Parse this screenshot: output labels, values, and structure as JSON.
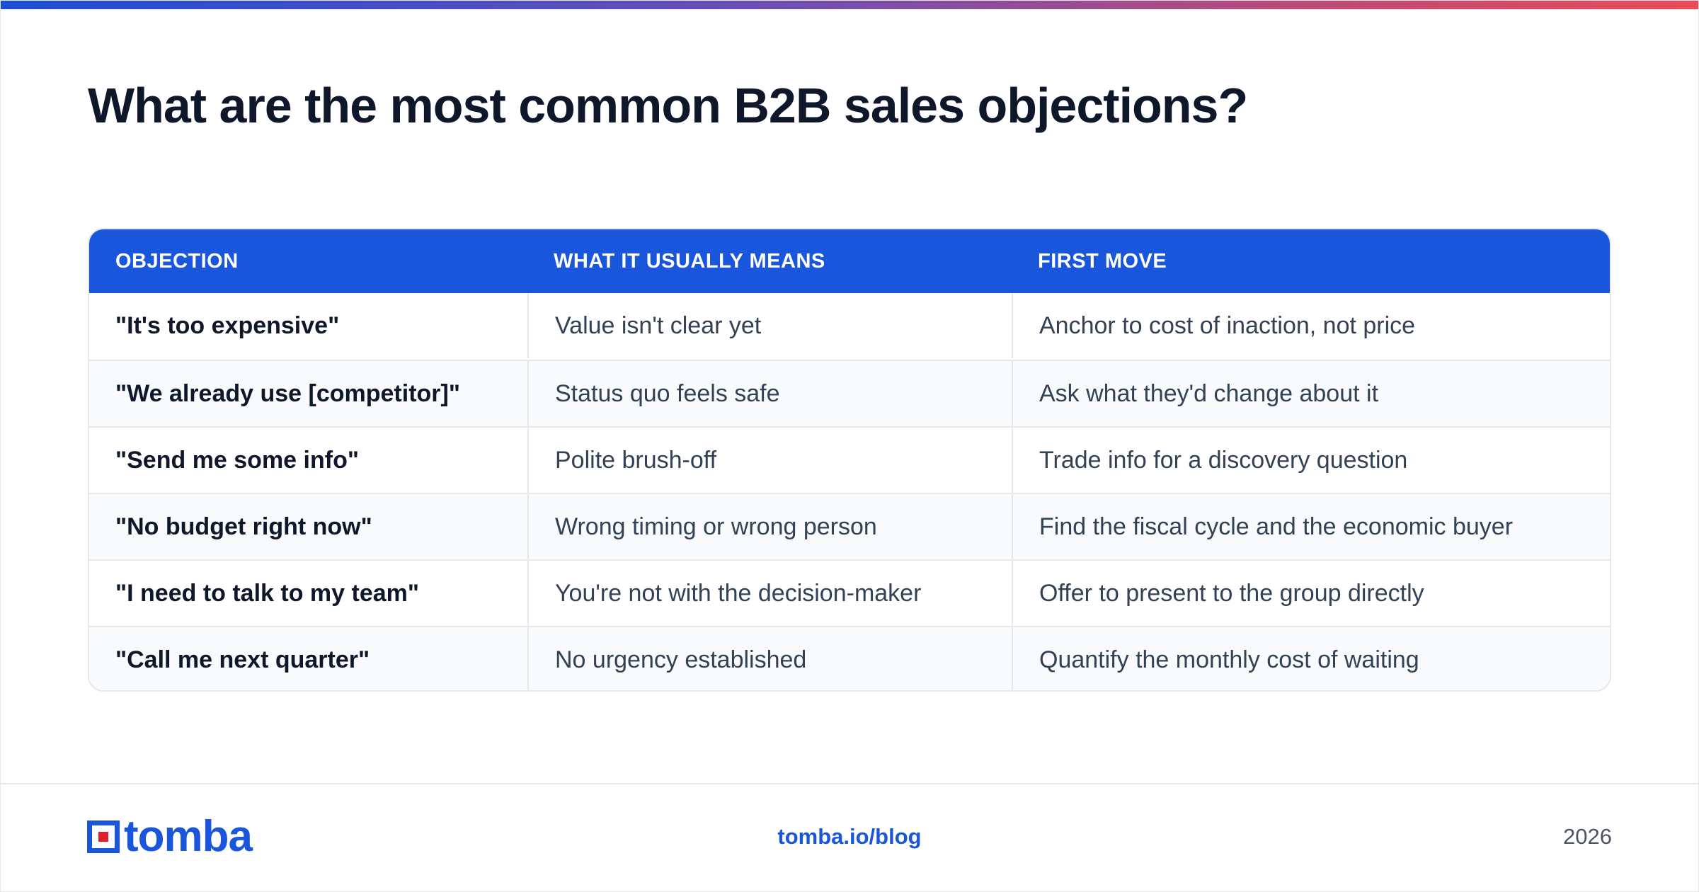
{
  "title": "What are the most common B2B sales objections?",
  "table": {
    "headers": [
      "OBJECTION",
      "WHAT IT USUALLY MEANS",
      "FIRST MOVE"
    ],
    "rows": [
      {
        "objection": "\"It's too expensive\"",
        "meaning": "Value isn't clear yet",
        "move": "Anchor to cost of inaction, not price"
      },
      {
        "objection": "\"We already use [competitor]\"",
        "meaning": "Status quo feels safe",
        "move": "Ask what they'd change about it"
      },
      {
        "objection": "\"Send me some info\"",
        "meaning": "Polite brush-off",
        "move": "Trade info for a discovery question"
      },
      {
        "objection": "\"No budget right now\"",
        "meaning": "Wrong timing or wrong person",
        "move": "Find the fiscal cycle and the economic buyer"
      },
      {
        "objection": "\"I need to talk to my team\"",
        "meaning": "You're not with the decision-maker",
        "move": "Offer to present to the group directly"
      },
      {
        "objection": "\"Call me next quarter\"",
        "meaning": "No urgency established",
        "move": "Quantify the monthly cost of waiting"
      }
    ]
  },
  "footer": {
    "logo_text": "tomba",
    "link": "tomba.io/blog",
    "year": "2026"
  },
  "colors": {
    "accent": "#1a56db",
    "logo_red": "#e11d2e",
    "gradient_start": "#1d4ed8",
    "gradient_end": "#ea4a55"
  }
}
